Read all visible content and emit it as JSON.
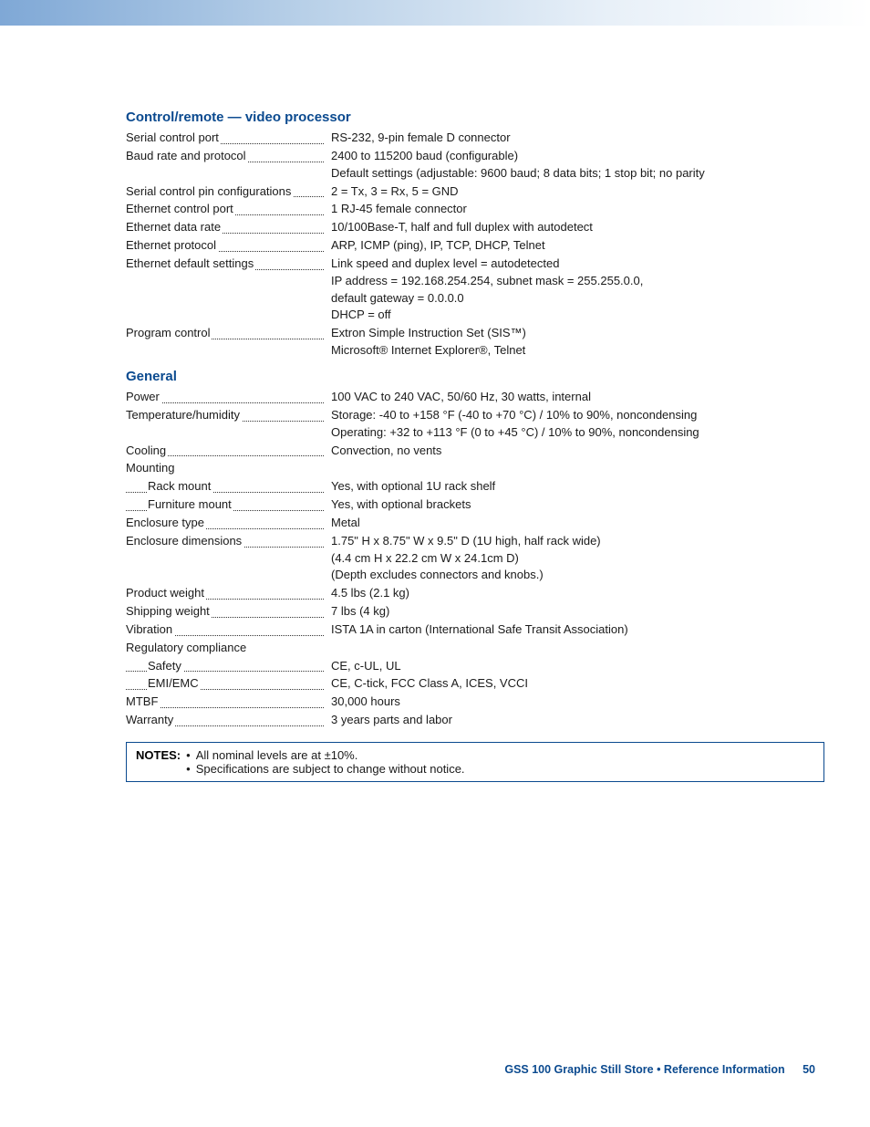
{
  "colors": {
    "heading": "#0b4a8f",
    "border": "#0b4a8f",
    "text": "#1a1a1a",
    "gradient_start": "#7fa8d6",
    "gradient_end": "#ffffff"
  },
  "sections": [
    {
      "heading": "Control/remote — video processor",
      "rows": [
        {
          "label": "Serial control port",
          "values": [
            "RS-232, 9-pin female D connector"
          ]
        },
        {
          "label": "Baud rate and protocol",
          "values": [
            "2400 to 115200 baud (configurable)",
            "Default settings (adjustable: 9600 baud; 8 data bits; 1 stop bit; no parity"
          ]
        },
        {
          "label": "Serial control pin configurations",
          "values": [
            "2 = Tx, 3 = Rx, 5 = GND"
          ]
        },
        {
          "label": "Ethernet control port",
          "values": [
            "1 RJ-45 female connector"
          ]
        },
        {
          "label": "Ethernet data rate",
          "values": [
            "10/100Base-T, half and full duplex with autodetect"
          ]
        },
        {
          "label": "Ethernet protocol",
          "values": [
            "ARP, ICMP (ping), IP, TCP, DHCP, Telnet"
          ]
        },
        {
          "label": "Ethernet default settings",
          "values": [
            "Link speed and duplex level = autodetected",
            "IP address = 192.168.254.254, subnet mask = 255.255.0.0,",
            "default gateway = 0.0.0.0",
            "DHCP = off"
          ]
        },
        {
          "label": "Program control",
          "values": [
            "Extron Simple Instruction Set (SIS™)",
            "Microsoft® Internet Explorer®, Telnet"
          ]
        }
      ]
    },
    {
      "heading": "General",
      "rows": [
        {
          "label": "Power",
          "values": [
            "100 VAC to 240 VAC, 50/60 Hz, 30 watts, internal"
          ]
        },
        {
          "label": "Temperature/humidity",
          "values": [
            "Storage: -40 to +158 °F (-40 to +70 °C) / 10% to 90%, noncondensing",
            "Operating: +32 to +113 °F (0 to +45 °C) / 10% to 90%, noncondensing"
          ]
        },
        {
          "label": "Cooling",
          "values": [
            "Convection, no vents"
          ]
        },
        {
          "label": "Mounting",
          "values": [],
          "no_dots": true
        },
        {
          "label": "Rack mount",
          "indent": 1,
          "values": [
            "Yes, with optional 1U rack shelf"
          ]
        },
        {
          "label": "Furniture mount",
          "indent": 1,
          "values": [
            "Yes, with optional brackets"
          ]
        },
        {
          "label": "Enclosure type",
          "values": [
            "Metal"
          ]
        },
        {
          "label": "Enclosure dimensions",
          "values": [
            "1.75\" H x 8.75\" W x 9.5\" D (1U high, half rack wide)",
            "(4.4 cm H x 22.2 cm W x 24.1cm D)",
            "(Depth excludes connectors and knobs.)"
          ]
        },
        {
          "label": "Product weight",
          "values": [
            "4.5 lbs (2.1 kg)"
          ]
        },
        {
          "label": "Shipping weight",
          "values": [
            "7 lbs (4 kg)"
          ]
        },
        {
          "label": "Vibration",
          "values": [
            "ISTA 1A in carton (International Safe Transit Association)"
          ]
        },
        {
          "label": "Regulatory compliance",
          "values": [],
          "no_dots": true
        },
        {
          "label": "Safety",
          "indent": 1,
          "values": [
            "CE, c-UL, UL"
          ]
        },
        {
          "label": "EMI/EMC",
          "indent": 1,
          "values": [
            "CE, C-tick, FCC Class A, ICES, VCCI"
          ]
        },
        {
          "label": "MTBF",
          "values": [
            "30,000 hours"
          ]
        },
        {
          "label": "Warranty",
          "values": [
            "3 years parts and labor"
          ]
        }
      ]
    }
  ],
  "notes": {
    "label": "NOTES:",
    "items": [
      "All nominal levels are at ±10%.",
      "Specifications are subject to change without notice."
    ]
  },
  "footer": {
    "text": "GSS 100 Graphic Still Store • Reference Information",
    "page": "50"
  }
}
